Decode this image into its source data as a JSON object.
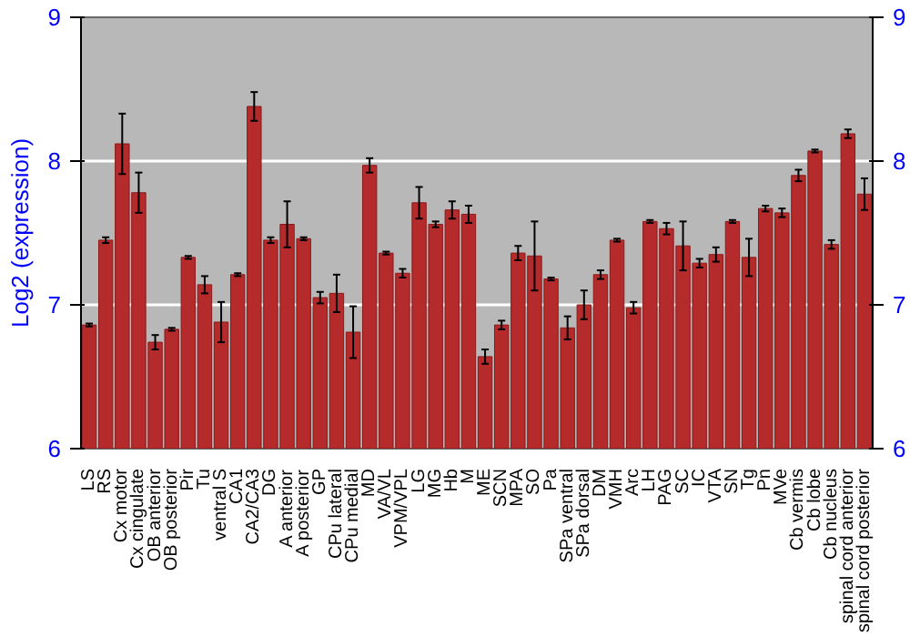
{
  "chart_data": {
    "type": "bar",
    "ylabel": "Log2 (expression)",
    "categories": [
      "LS",
      "RS",
      "Cx motor",
      "Cx cingulate",
      "OB anterior",
      "OB posterior",
      "Pir",
      "Tu",
      "ventral S",
      "CA1",
      "CA2/CA3",
      "DG",
      "A anterior",
      "A posterior",
      "GP",
      "CPu lateral",
      "CPu medial",
      "MD",
      "VA/VL",
      "VPM/VPL",
      "LG",
      "MG",
      "Hb",
      "M",
      "ME",
      "SCN",
      "MPA",
      "SO",
      "Pa",
      "SPa ventral",
      "SPa dorsal",
      "DM",
      "VMH",
      "Arc",
      "LH",
      "PAG",
      "SC",
      "IC",
      "VTA",
      "SN",
      "Tg",
      "Pn",
      "MVe",
      "Cb vermis",
      "Cb lobe",
      "Cb nucleus",
      "spinal cord anterior",
      "spinal cord posterior"
    ],
    "values": [
      6.86,
      7.45,
      8.12,
      7.78,
      6.74,
      6.83,
      7.33,
      7.14,
      6.88,
      7.21,
      8.38,
      7.45,
      7.56,
      7.46,
      7.05,
      7.08,
      6.81,
      7.97,
      7.36,
      7.22,
      7.71,
      7.56,
      7.66,
      7.63,
      6.64,
      6.86,
      7.36,
      7.34,
      7.18,
      6.84,
      7.0,
      7.21,
      7.45,
      6.98,
      7.58,
      7.53,
      7.41,
      7.29,
      7.35,
      7.58,
      7.33,
      7.67,
      7.64,
      7.9,
      8.07,
      7.42,
      8.19,
      7.77
    ],
    "errors": [
      0.01,
      0.02,
      0.21,
      0.14,
      0.05,
      0.01,
      0.01,
      0.06,
      0.14,
      0.01,
      0.1,
      0.02,
      0.16,
      0.01,
      0.04,
      0.13,
      0.18,
      0.05,
      0.01,
      0.03,
      0.11,
      0.02,
      0.06,
      0.06,
      0.05,
      0.03,
      0.05,
      0.24,
      0.01,
      0.08,
      0.1,
      0.03,
      0.01,
      0.04,
      0.01,
      0.04,
      0.17,
      0.03,
      0.05,
      0.01,
      0.13,
      0.02,
      0.03,
      0.04,
      0.01,
      0.03,
      0.03,
      0.11
    ],
    "color": "#b52a2a",
    "ylim": [
      6,
      9
    ],
    "yticks": [
      6,
      7,
      8,
      9
    ],
    "y2lim": [
      6,
      9
    ],
    "y2ticks": [
      6,
      7,
      8,
      9
    ],
    "grid": "y"
  }
}
